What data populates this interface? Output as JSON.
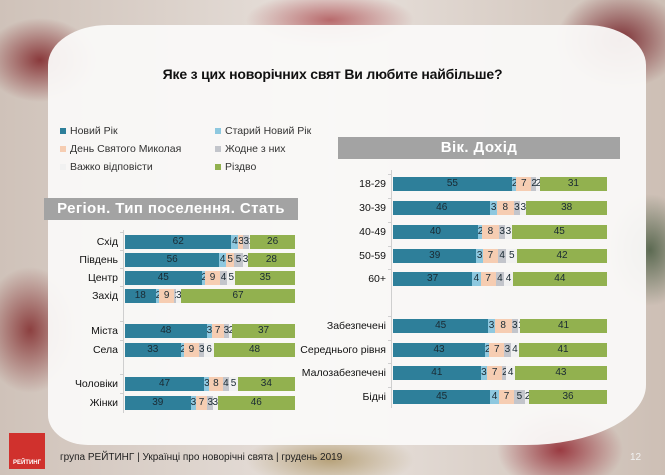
{
  "title": "Яке з цих новорічних свят Ви любите найбільше?",
  "colors": {
    "novyi_rik": "#2e7f9a",
    "staryi_novyi_rik": "#8ec8df",
    "den_mykolaya": "#f6cdb2",
    "zhodne": "#c3c5cb",
    "vazhko": "#f1f1f1",
    "rizdvo": "#92b14f"
  },
  "legend": [
    {
      "key": "novyi_rik",
      "label": "Новий Рік"
    },
    {
      "key": "den_mykolaya",
      "label": "День Святого Миколая"
    },
    {
      "key": "vazhko",
      "label": "Важко відповісти"
    },
    {
      "key": "staryi_novyi_rik",
      "label": "Старий Новий Рік"
    },
    {
      "key": "zhodne",
      "label": "Жодне з них"
    },
    {
      "key": "rizdvo",
      "label": "Різдво"
    }
  ],
  "chart_data": [
    {
      "type": "bar",
      "orientation": "horizontal",
      "stacked": true,
      "title": "Регіон. Тип поселення. Стать",
      "series_order": [
        "Новий Рік",
        "Старий Новий Рік",
        "День Святого Миколая",
        "Жодне з них",
        "Важко відповісти",
        "Різдво"
      ],
      "xlim": [
        0,
        100
      ],
      "groups": [
        {
          "categories": [
            "Схід",
            "Південь",
            "Центр",
            "Захід"
          ],
          "values": [
            [
              62,
              4,
              3,
              3,
              1,
              26
            ],
            [
              56,
              4,
              5,
              5,
              3,
              28
            ],
            [
              45,
              2,
              9,
              4,
              5,
              35
            ],
            [
              18,
              2,
              9,
              1,
              3,
              67
            ]
          ]
        },
        {
          "categories": [
            "Міста",
            "Села"
          ],
          "values": [
            [
              48,
              3,
              7,
              3,
              2,
              37
            ],
            [
              33,
              2,
              9,
              3,
              6,
              48
            ]
          ]
        },
        {
          "categories": [
            "Чоловіки",
            "Жінки"
          ],
          "values": [
            [
              47,
              3,
              8,
              4,
              5,
              34
            ],
            [
              39,
              3,
              7,
              3,
              3,
              46
            ]
          ]
        }
      ]
    },
    {
      "type": "bar",
      "orientation": "horizontal",
      "stacked": true,
      "title": "Вік. Дохід",
      "series_order": [
        "Новий Рік",
        "Старий Новий Рік",
        "День Святого Миколая",
        "Жодне з них",
        "Важко відповісти",
        "Різдво"
      ],
      "xlim": [
        0,
        100
      ],
      "groups": [
        {
          "categories": [
            "18-29",
            "30-39",
            "40-49",
            "50-59",
            "60+"
          ],
          "values": [
            [
              55,
              2,
              7,
              2,
              2,
              31
            ],
            [
              46,
              3,
              8,
              3,
              3,
              38
            ],
            [
              40,
              2,
              8,
              3,
              3,
              45
            ],
            [
              39,
              3,
              7,
              4,
              5,
              42
            ],
            [
              37,
              4,
              7,
              4,
              4,
              44
            ]
          ]
        },
        {
          "categories": [
            "Забезпечені",
            "Середнього рівня",
            "Малозабезпечені",
            "Бідні"
          ],
          "values": [
            [
              45,
              3,
              8,
              3,
              1,
              41
            ],
            [
              43,
              2,
              7,
              3,
              4,
              41
            ],
            [
              41,
              3,
              7,
              2,
              4,
              43
            ],
            [
              45,
              4,
              7,
              5,
              2,
              36
            ]
          ]
        }
      ]
    }
  ],
  "footer": {
    "text": "група РЕЙТИНГ  |  Українці про новорічні свята |  грудень  2019",
    "logo": "РЕЙТИНГ",
    "page": "12"
  }
}
